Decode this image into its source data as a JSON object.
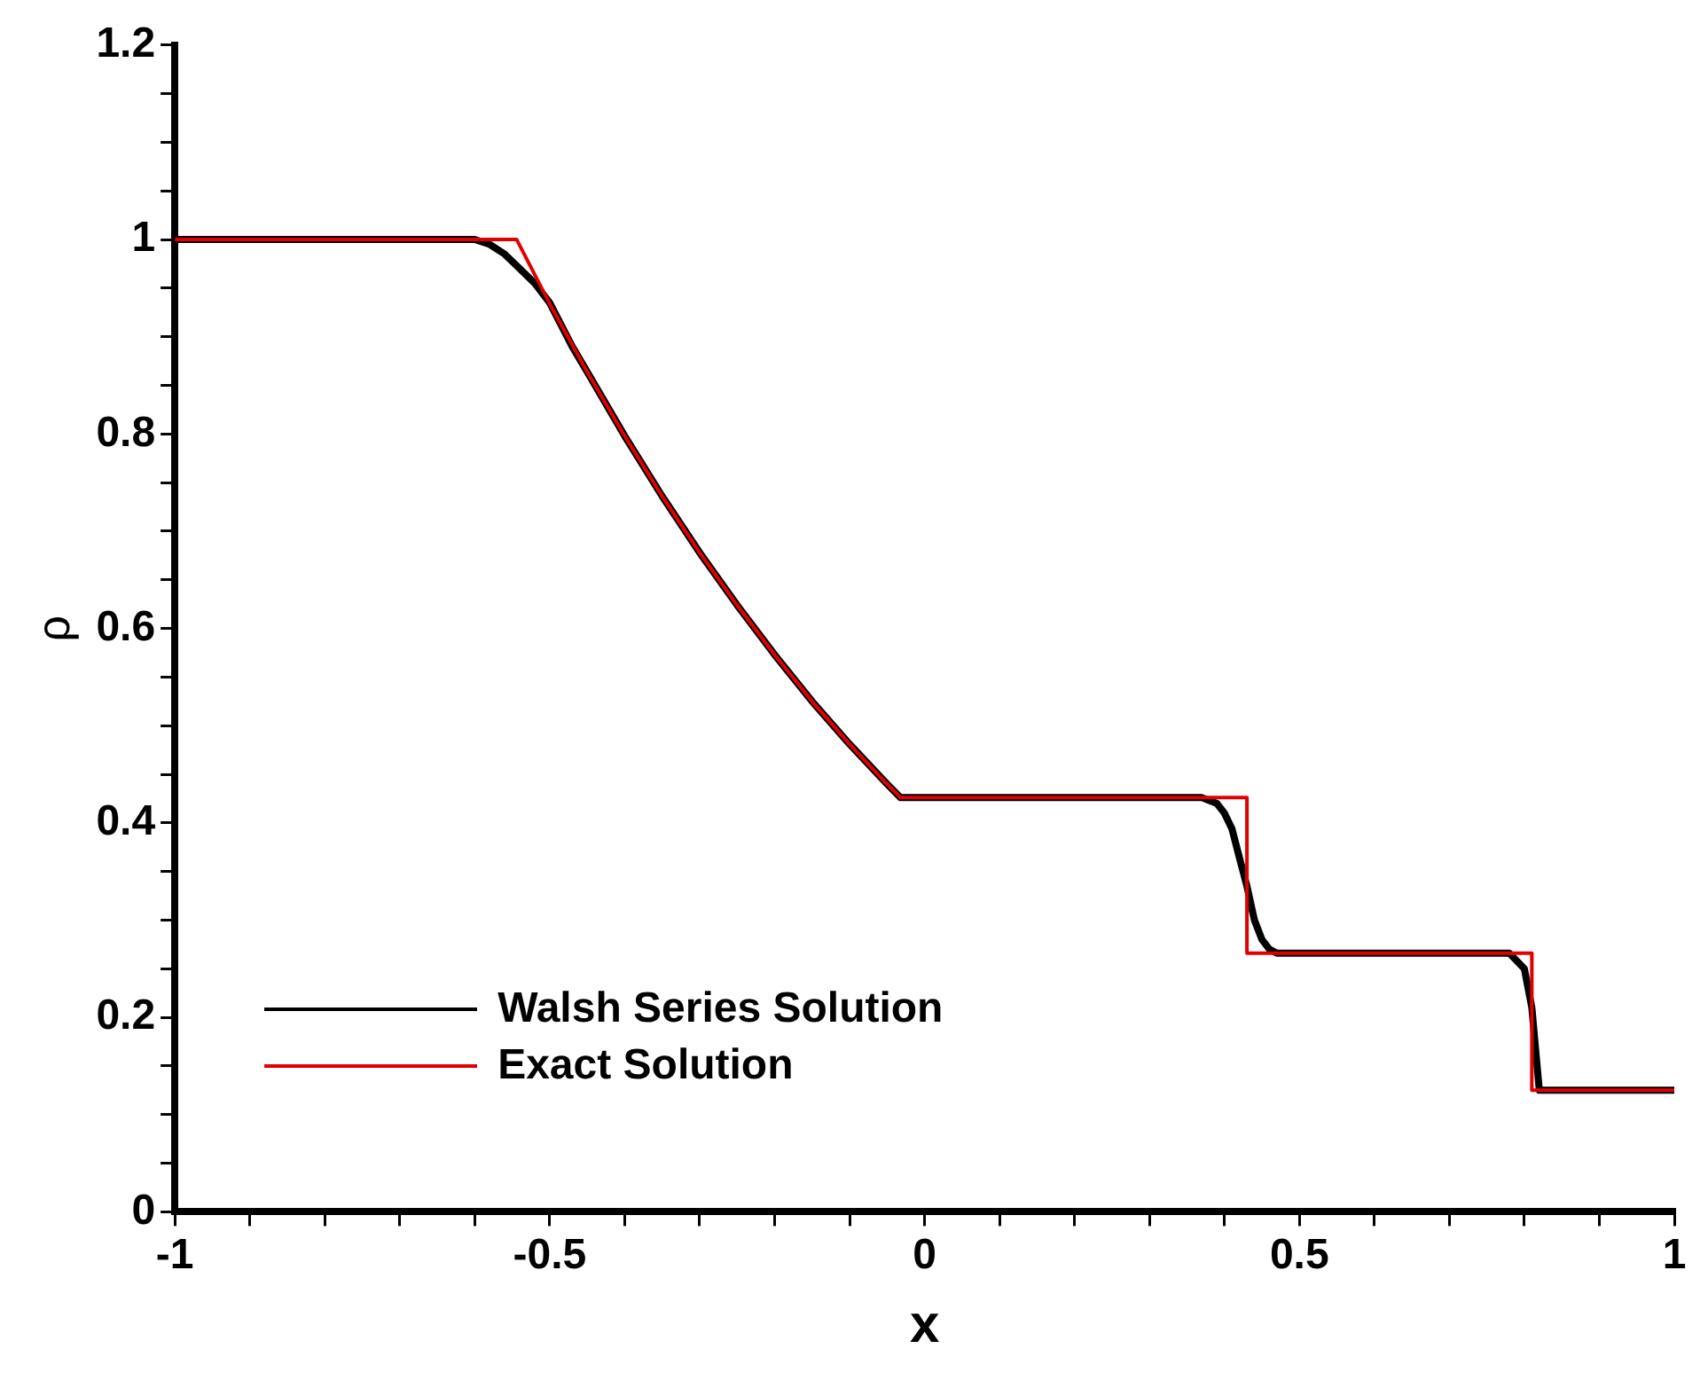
{
  "chart_data": {
    "type": "line",
    "xlabel": "x",
    "ylabel": "ρ",
    "xlim": [
      -1,
      1
    ],
    "ylim": [
      0,
      1.2
    ],
    "xticks": [
      -1,
      {
        "value": -0.9,
        "label": null
      },
      {
        "value": -0.8,
        "label": null
      },
      {
        "value": -0.7,
        "label": null
      },
      {
        "value": -0.6,
        "label": null
      },
      -0.5,
      {
        "value": -0.4,
        "label": null
      },
      {
        "value": -0.3,
        "label": null
      },
      {
        "value": -0.2,
        "label": null
      },
      {
        "value": -0.1,
        "label": null
      },
      0,
      {
        "value": 0.1,
        "label": null
      },
      {
        "value": 0.2,
        "label": null
      },
      {
        "value": 0.3,
        "label": null
      },
      {
        "value": 0.4,
        "label": null
      },
      0.5,
      {
        "value": 0.6,
        "label": null
      },
      {
        "value": 0.7,
        "label": null
      },
      {
        "value": 0.8,
        "label": null
      },
      {
        "value": 0.9,
        "label": null
      },
      1
    ],
    "yticks": [
      0,
      {
        "value": 0.05,
        "label": null
      },
      {
        "value": 0.1,
        "label": null
      },
      {
        "value": 0.15,
        "label": null
      },
      0.2,
      {
        "value": 0.25,
        "label": null
      },
      {
        "value": 0.3,
        "label": null
      },
      {
        "value": 0.35,
        "label": null
      },
      0.4,
      {
        "value": 0.45,
        "label": null
      },
      {
        "value": 0.5,
        "label": null
      },
      {
        "value": 0.55,
        "label": null
      },
      0.6,
      {
        "value": 0.65,
        "label": null
      },
      {
        "value": 0.7,
        "label": null
      },
      {
        "value": 0.75,
        "label": null
      },
      0.8,
      {
        "value": 0.85,
        "label": null
      },
      {
        "value": 0.9,
        "label": null
      },
      {
        "value": 0.95,
        "label": null
      },
      1,
      {
        "value": 1.05,
        "label": null
      },
      {
        "value": 1.1,
        "label": null
      },
      {
        "value": 1.15,
        "label": null
      },
      1.2
    ],
    "grid": false,
    "legend": "bottom left",
    "series": [
      {
        "name": "Walsh Series Solution",
        "color": "#000000",
        "x": [
          -1,
          -0.6,
          -0.58,
          -0.56,
          -0.54,
          -0.52,
          -0.5,
          -0.47,
          -0.45,
          -0.4,
          -0.35,
          -0.3,
          -0.25,
          -0.2,
          -0.15,
          -0.1,
          -0.05,
          -0.032,
          0.37,
          0.39,
          0.4,
          0.41,
          0.42,
          0.43,
          0.44,
          0.45,
          0.46,
          0.47,
          0.78,
          0.8,
          0.81,
          0.815,
          0.82,
          1
        ],
        "values": [
          1,
          1,
          0.995,
          0.985,
          0.97,
          0.955,
          0.935,
          0.89,
          0.864,
          0.798,
          0.736,
          0.678,
          0.624,
          0.573,
          0.525,
          0.481,
          0.44,
          0.426,
          0.426,
          0.42,
          0.41,
          0.394,
          0.364,
          0.335,
          0.3,
          0.28,
          0.27,
          0.266,
          0.266,
          0.25,
          0.21,
          0.167,
          0.125,
          0.125
        ]
      },
      {
        "name": "Exact Solution",
        "color": "#e00000",
        "x": [
          -1,
          -0.544,
          -0.5,
          -0.45,
          -0.4,
          -0.35,
          -0.3,
          -0.25,
          -0.2,
          -0.15,
          -0.1,
          -0.05,
          -0.032,
          0.43,
          0.43,
          0.81,
          0.81,
          1
        ],
        "values": [
          1,
          1,
          0.934,
          0.864,
          0.798,
          0.736,
          0.678,
          0.624,
          0.573,
          0.525,
          0.481,
          0.44,
          0.426,
          0.426,
          0.266,
          0.266,
          0.125,
          0.125
        ]
      }
    ]
  }
}
